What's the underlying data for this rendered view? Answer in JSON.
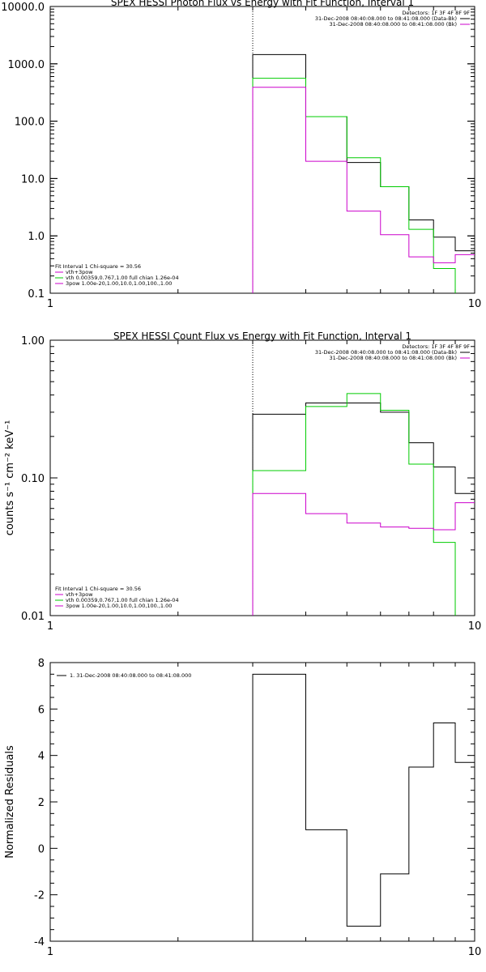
{
  "chart_data": [
    {
      "type": "line",
      "step": true,
      "title": "SPEX HESSI Photon Flux vs Energy with Fit Function, Interval 1",
      "xlabel": "",
      "ylabel": "",
      "xscale": "log",
      "yscale": "log",
      "xlim": [
        1,
        10
      ],
      "ylim": [
        0.1,
        10000
      ],
      "xticks": [
        {
          "v": 1,
          "label": "1"
        },
        {
          "v": 10,
          "label": "10"
        }
      ],
      "yticks": [
        {
          "v": 10000,
          "label": "10000.0"
        },
        {
          "v": 1000,
          "label": "1000.0"
        },
        {
          "v": 100,
          "label": "100.0"
        },
        {
          "v": 10,
          "label": "10.0"
        },
        {
          "v": 1,
          "label": "1.0"
        },
        {
          "v": 0.1,
          "label": "0.1"
        }
      ],
      "vline": 3.0,
      "legend_right": {
        "lines": [
          "Detectors: 1F 3F 4F 8F 9F",
          "31-Dec-2008 08:40:08.000 to 08:41:08.000 (Data-Bk)",
          "31-Dec-2008 08:40:08.000 to 08:41:08.000 (Bk)"
        ],
        "colors": [
          "",
          "#000000",
          "#cc00cc"
        ]
      },
      "legend_left": {
        "lines": [
          "Fit Interval 1    Chi-square = 30.56",
          "vth+3pow",
          "vth 0.00359,0.767,1.00   full chian 1.26e-04",
          "3pow 1.00e-20,1.00,10.0,1.00,100.,1.00"
        ],
        "colors": [
          "",
          "#cc00cc",
          "#00cc00",
          "#cc00cc"
        ]
      },
      "edges": [
        3.0,
        4.0,
        5.0,
        6.0,
        7.0,
        8.0,
        9.0,
        10.0
      ],
      "series": [
        {
          "color": "#000000",
          "values": [
            1450,
            120,
            19,
            7.2,
            1.9,
            0.95,
            0.55
          ]
        },
        {
          "color": "#00cc00",
          "values": [
            560,
            120,
            23,
            7.2,
            1.3,
            0.27,
            0.0001
          ]
        },
        {
          "color": "#cc00cc",
          "values": [
            390,
            20,
            2.7,
            1.05,
            0.43,
            0.34,
            0.47
          ]
        }
      ]
    },
    {
      "type": "line",
      "step": true,
      "title": "SPEX HESSI Count Flux vs Energy with Fit Function, Interval 1",
      "xlabel": "",
      "ylabel": "counts s⁻¹ cm⁻² keV⁻¹",
      "xscale": "log",
      "yscale": "log",
      "xlim": [
        1,
        10
      ],
      "ylim": [
        0.01,
        1.0
      ],
      "xticks": [
        {
          "v": 1,
          "label": "1"
        },
        {
          "v": 10,
          "label": "10"
        }
      ],
      "yticks": [
        {
          "v": 1,
          "label": "1.00"
        },
        {
          "v": 0.1,
          "label": "0.10"
        },
        {
          "v": 0.01,
          "label": "0.01"
        }
      ],
      "vline": 3.0,
      "legend_right": {
        "lines": [
          "Detectors: 1F 3F 4F 8F 9F",
          "31-Dec-2008 08:40:08.000 to 08:41:08.000 (Data-Bk)",
          "31-Dec-2008 08:40:08.000 to 08:41:08.000 (Bk)"
        ],
        "colors": [
          "",
          "#000000",
          "#cc00cc"
        ]
      },
      "legend_left": {
        "lines": [
          "Fit Interval 1    Chi-square = 30.56",
          "vth+3pow",
          "vth 0.00359,0.767,1.00   full chian 1.26e-04",
          "3pow 1.00e-20,1.00,10.0,1.00,100.,1.00"
        ],
        "colors": [
          "",
          "#cc00cc",
          "#00cc00",
          "#cc00cc"
        ]
      },
      "edges": [
        3.0,
        4.0,
        5.0,
        6.0,
        7.0,
        8.0,
        9.0,
        10.0
      ],
      "series": [
        {
          "color": "#000000",
          "values": [
            0.29,
            0.35,
            0.35,
            0.3,
            0.18,
            0.12,
            0.077
          ]
        },
        {
          "color": "#00cc00",
          "values": [
            0.113,
            0.33,
            0.41,
            0.31,
            0.126,
            0.034,
            0.001
          ]
        },
        {
          "color": "#cc00cc",
          "values": [
            0.077,
            0.055,
            0.047,
            0.044,
            0.043,
            0.042,
            0.066
          ]
        }
      ]
    },
    {
      "type": "line",
      "step": true,
      "title": "",
      "xlabel": "",
      "ylabel": "Normalized Residuals",
      "xscale": "log",
      "yscale": "linear",
      "xlim": [
        1,
        10
      ],
      "ylim": [
        -4,
        8
      ],
      "xticks": [
        {
          "v": 1,
          "label": "1"
        },
        {
          "v": 10,
          "label": "10"
        }
      ],
      "yticks": [
        {
          "v": 8,
          "label": "8"
        },
        {
          "v": 6,
          "label": "6"
        },
        {
          "v": 4,
          "label": "4"
        },
        {
          "v": 2,
          "label": "2"
        },
        {
          "v": 0,
          "label": "0"
        },
        {
          "v": -2,
          "label": "-2"
        },
        {
          "v": -4,
          "label": "-4"
        }
      ],
      "legend_left_top": {
        "lines": [
          "1.  31-Dec-2008 08:40:08.000 to 08:41:08.000"
        ],
        "colors": [
          "#000000"
        ]
      },
      "edges": [
        3.0,
        4.0,
        5.0,
        6.0,
        7.0,
        8.0,
        9.0,
        10.0
      ],
      "series": [
        {
          "color": "#000000",
          "values": [
            7.5,
            0.8,
            -3.35,
            -1.1,
            3.5,
            5.4,
            3.7
          ]
        }
      ]
    }
  ]
}
